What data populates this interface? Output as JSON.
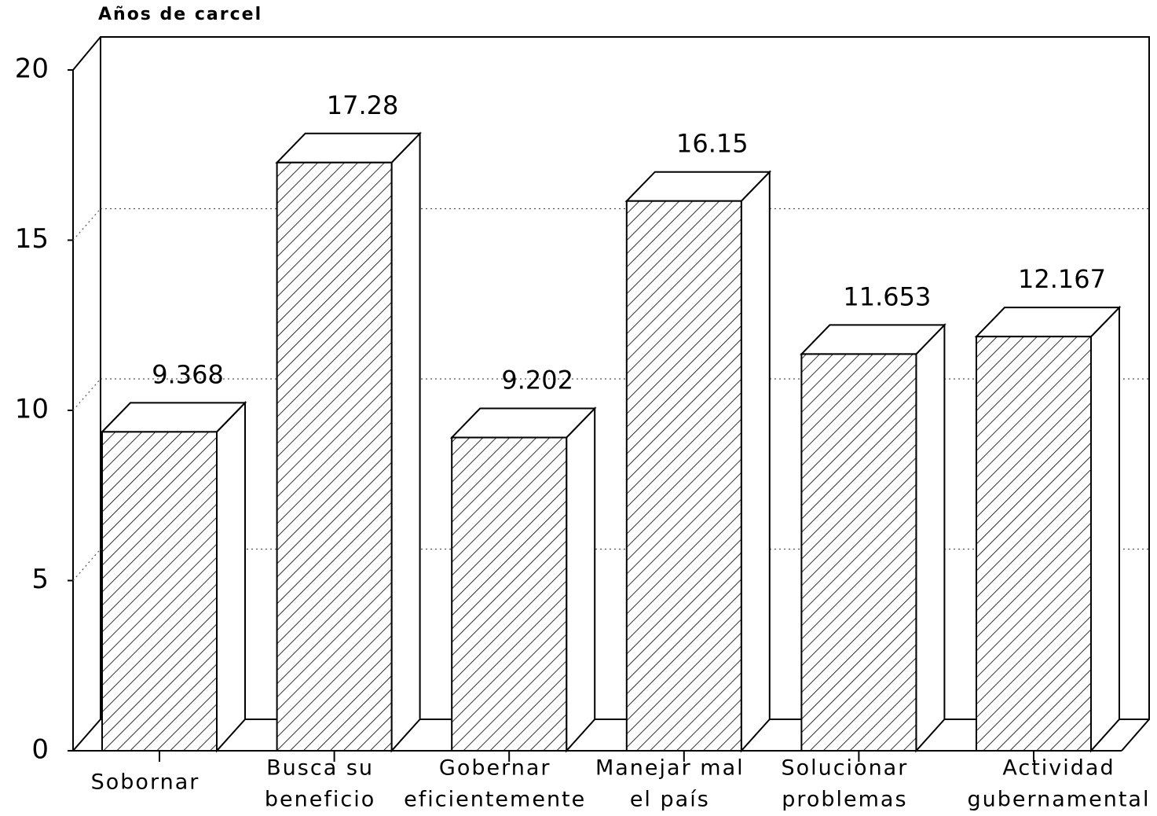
{
  "chart_data": {
    "type": "bar3d",
    "ylabel": "Años de carcel",
    "categories": [
      [
        "Sobornar"
      ],
      [
        "Busca su",
        "beneficio"
      ],
      [
        "Gobernar",
        "eficientemente"
      ],
      [
        "Manejar mal",
        "el país"
      ],
      [
        "Solucionar",
        "problemas"
      ],
      [
        "Actividad",
        "gubernamental"
      ]
    ],
    "values": [
      9.368,
      17.28,
      9.202,
      16.15,
      11.653,
      12.167
    ],
    "color": "#000000",
    "ylim": [
      0,
      20
    ],
    "yticks": [
      0,
      5,
      10,
      15,
      20
    ],
    "grid": true
  }
}
